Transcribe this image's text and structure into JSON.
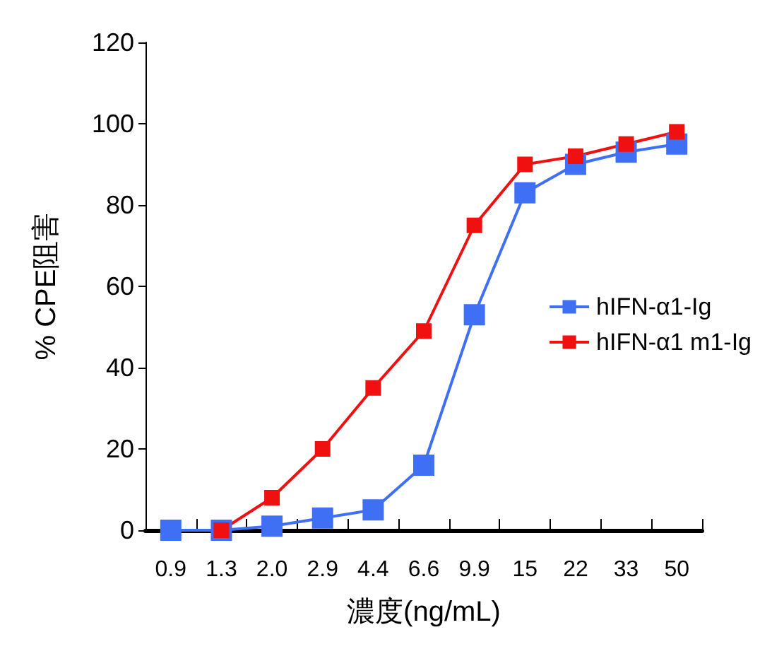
{
  "chart_data": {
    "type": "line",
    "xlabel": "濃度(ng/mL)",
    "ylabel": "% CPE阻害",
    "categories": [
      "0.9",
      "1.3",
      "2.0",
      "2.9",
      "4.4",
      "6.6",
      "9.9",
      "15",
      "22",
      "33",
      "50"
    ],
    "series": [
      {
        "name": "hIFN-α1-Ig",
        "color": "#3f6ff5",
        "values": [
          0,
          0,
          1,
          3,
          5,
          16,
          53,
          83,
          90,
          93,
          95
        ]
      },
      {
        "name": "hIFN-α1 m1-Ig",
        "color": "#f01010",
        "values": [
          null,
          0,
          8,
          20,
          35,
          49,
          75,
          90,
          92,
          95,
          98
        ]
      }
    ],
    "ylim": [
      0,
      120
    ],
    "yticks": [
      0,
      20,
      40,
      60,
      80,
      100,
      120
    ],
    "grid": false,
    "legend": "right",
    "marker": "square",
    "line_style": "solid"
  }
}
